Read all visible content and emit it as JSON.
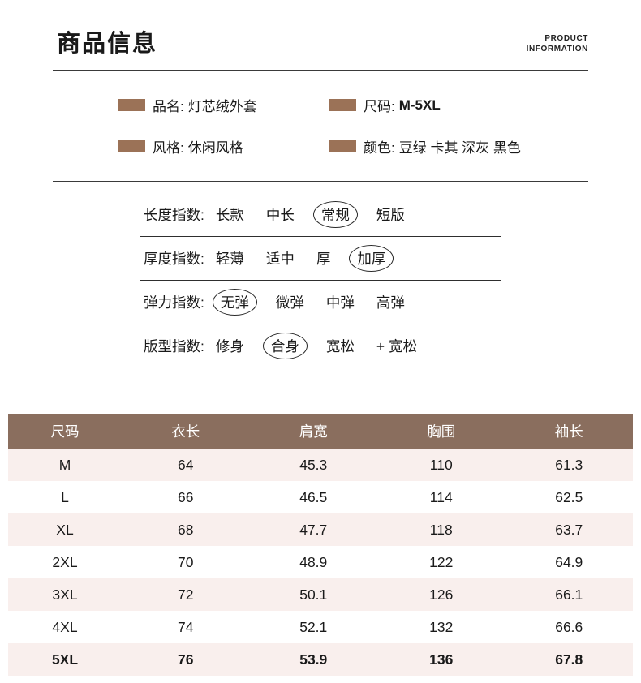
{
  "header": {
    "title": "商品信息",
    "subtitle_line1": "PRODUCT",
    "subtitle_line2": "INFORMATION"
  },
  "attributes": [
    {
      "label": "品名:",
      "value": "灯芯绒外套"
    },
    {
      "label": "尺码:",
      "value": "M-5XL"
    },
    {
      "label": "风格:",
      "value": "休闲风格"
    },
    {
      "label": "颜色:",
      "value": "豆绿 卡其 深灰 黑色"
    }
  ],
  "indexes": [
    {
      "label": "长度指数:",
      "options": [
        "长款",
        "中长",
        "常规",
        "短版"
      ],
      "selected": "常规"
    },
    {
      "label": "厚度指数:",
      "options": [
        "轻薄",
        "适中",
        "厚",
        "加厚"
      ],
      "selected": "加厚"
    },
    {
      "label": "弹力指数:",
      "options": [
        "无弹",
        "微弹",
        "中弹",
        "高弹"
      ],
      "selected": "无弹"
    },
    {
      "label": "版型指数:",
      "options": [
        "修身",
        "合身",
        "宽松",
        "+ 宽松"
      ],
      "selected": "合身"
    }
  ],
  "size_table": {
    "headers": [
      "尺码",
      "衣长",
      "肩宽",
      "胸围",
      "袖长"
    ],
    "rows": [
      [
        "M",
        "64",
        "45.3",
        "110",
        "61.3"
      ],
      [
        "L",
        "66",
        "46.5",
        "114",
        "62.5"
      ],
      [
        "XL",
        "68",
        "47.7",
        "118",
        "63.7"
      ],
      [
        "2XL",
        "70",
        "48.9",
        "122",
        "64.9"
      ],
      [
        "3XL",
        "72",
        "50.1",
        "126",
        "66.1"
      ],
      [
        "4XL",
        "74",
        "52.1",
        "132",
        "66.6"
      ],
      [
        "5XL",
        "76",
        "53.9",
        "136",
        "67.8"
      ]
    ]
  },
  "colors": {
    "accent": "#9b7257",
    "table_header": "#8a6e5e",
    "row_alt": "#f9efed"
  }
}
